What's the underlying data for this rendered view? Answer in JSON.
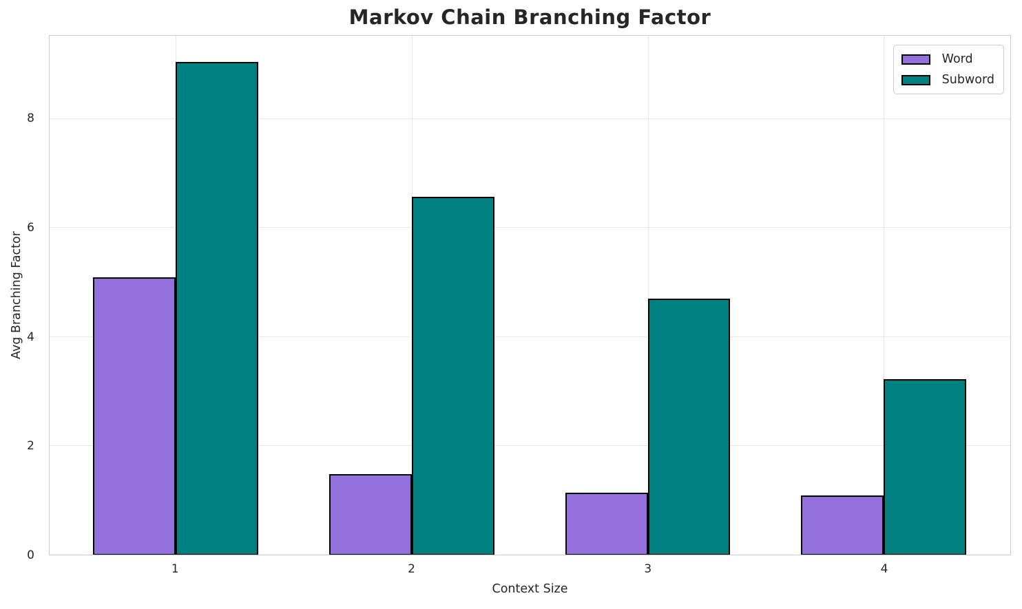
{
  "chart_data": {
    "type": "bar",
    "title": "Markov Chain Branching Factor",
    "xlabel": "Context Size",
    "ylabel": "Avg Branching Factor",
    "categories": [
      "1",
      "2",
      "3",
      "4"
    ],
    "series": [
      {
        "name": "Word",
        "color": "#9370DB",
        "edge_color": "#000000",
        "values": [
          5.1,
          1.48,
          1.14,
          1.09
        ]
      },
      {
        "name": "Subword",
        "color": "#008080",
        "edge_color": "#000000",
        "values": [
          9.05,
          6.57,
          4.7,
          3.22
        ]
      }
    ],
    "yticks": [
      0,
      2,
      4,
      6,
      8
    ],
    "ylim": [
      0,
      9.53
    ],
    "grid": true,
    "legend": {
      "position": "upper right",
      "entries": [
        "Word",
        "Subword"
      ]
    },
    "colors": {
      "background": "#ffffff",
      "grid": "#e6e6e6",
      "spine": "#cbcbcb",
      "text": "#262626",
      "bar_edge": "#000000"
    }
  }
}
